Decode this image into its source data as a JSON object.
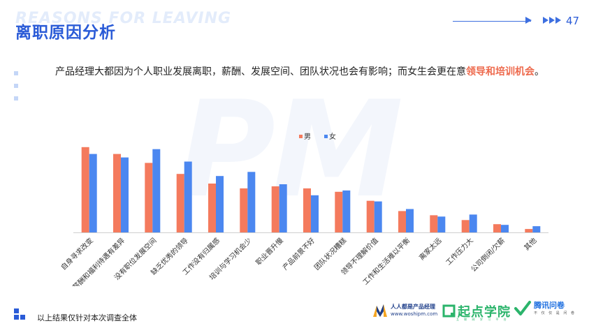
{
  "header": {
    "watermark": "REASONS FOR LEAVING",
    "title": "离职原因分析",
    "page_number": "47"
  },
  "summary": {
    "text": "产品经理大都因为个人职业发展离职，薪酬、发展空间、团队状况也会有影响；而女生会更在意",
    "highlight": "领导和培训机会",
    "suffix": "。"
  },
  "background_watermark": "PM",
  "colors": {
    "male": "#f47a5d",
    "female": "#4b87f0",
    "title": "#2a5bd7",
    "highlight": "#ee6a4d",
    "dot_light": "#c4d6f7",
    "dot_dark": "#2a5bd7"
  },
  "chart_data": {
    "type": "bar",
    "title": "",
    "xlabel": "",
    "ylabel": "",
    "legend_position": "top-center",
    "categories": [
      "自身寻求改变",
      "薪酬和福利待遇有差异",
      "没有职位发展空间",
      "缺乏优秀的领导",
      "工作没有归属感",
      "培训与学习机会少",
      "职业晋升慢",
      "产品前景不好",
      "团队状况糟糕",
      "领导不理解价值",
      "工作和生活难以平衡",
      "离家太远",
      "工作压力大",
      "公司倒闭/欠薪",
      "其他"
    ],
    "series": [
      {
        "name": "男",
        "values": [
          124,
          114,
          101,
          85,
          71,
          64,
          67,
          64,
          59,
          46,
          31,
          25,
          18,
          12,
          5
        ]
      },
      {
        "name": "女",
        "values": [
          114,
          109,
          121,
          103,
          82,
          88,
          70,
          54,
          61,
          45,
          34,
          23,
          26,
          11,
          9
        ]
      }
    ],
    "ylim": [
      0,
      140
    ],
    "grid": false
  },
  "footer": {
    "note": "以上结果仅针对本次调查全体",
    "logo1_title": "人人都是产品经理",
    "logo1_url": "www.woshipm.com",
    "logo2_title": "起点学院",
    "logo2_sub": "互 联 网 学 习 平 台",
    "logo3_title": "腾讯问卷",
    "logo3_sub": "不 仅 仅 是 问 卷"
  }
}
